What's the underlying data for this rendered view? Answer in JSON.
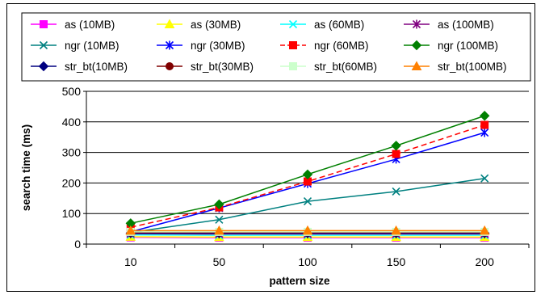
{
  "chart_data": {
    "type": "line",
    "title": "",
    "xlabel": "pattern size",
    "ylabel": "search time (ms)",
    "categories": [
      "10",
      "50",
      "100",
      "150",
      "200"
    ],
    "ylim": [
      0,
      500
    ],
    "yticks": [
      "0",
      "100",
      "200",
      "300",
      "400",
      "500"
    ],
    "grid": "horizontal",
    "legend_position": "top",
    "series": [
      {
        "name": "as (10MB)",
        "color": "#ff00ff",
        "marker": "square",
        "dash": false,
        "values": [
          22,
          21,
          21,
          21,
          21
        ]
      },
      {
        "name": "as (30MB)",
        "color": "#ffff00",
        "marker": "triangle",
        "dash": false,
        "values": [
          24,
          23,
          23,
          23,
          23
        ]
      },
      {
        "name": "as (60MB)",
        "color": "#00ffff",
        "marker": "x",
        "dash": false,
        "values": [
          30,
          29,
          29,
          29,
          29
        ]
      },
      {
        "name": "as (100MB)",
        "color": "#800080",
        "marker": "asterisk",
        "dash": false,
        "values": [
          34,
          33,
          33,
          33,
          33
        ]
      },
      {
        "name": "ngr (10MB)",
        "color": "#008080",
        "marker": "x",
        "dash": false,
        "values": [
          38,
          80,
          140,
          172,
          215
        ]
      },
      {
        "name": "ngr (30MB)",
        "color": "#0000ff",
        "marker": "asterisk",
        "dash": false,
        "values": [
          40,
          118,
          198,
          278,
          365
        ]
      },
      {
        "name": "ngr (60MB)",
        "color": "#ff0000",
        "marker": "square",
        "dash": true,
        "values": [
          55,
          120,
          205,
          295,
          390
        ]
      },
      {
        "name": "ngr (100MB)",
        "color": "#008000",
        "marker": "diamond",
        "dash": false,
        "values": [
          68,
          130,
          228,
          322,
          420
        ]
      },
      {
        "name": "str_bt(10MB)",
        "color": "#000080",
        "marker": "diamond",
        "dash": false,
        "values": [
          36,
          36,
          36,
          36,
          36
        ]
      },
      {
        "name": "str_bt(30MB)",
        "color": "#800000",
        "marker": "circle",
        "dash": false,
        "values": [
          38,
          38,
          38,
          38,
          38
        ]
      },
      {
        "name": "str_bt(60MB)",
        "color": "#ccffcc",
        "marker": "square",
        "dash": false,
        "values": [
          40,
          40,
          40,
          40,
          40
        ]
      },
      {
        "name": "str_bt(100MB)",
        "color": "#ff8000",
        "marker": "triangle",
        "dash": false,
        "values": [
          44,
          44,
          44,
          44,
          44
        ]
      }
    ]
  }
}
